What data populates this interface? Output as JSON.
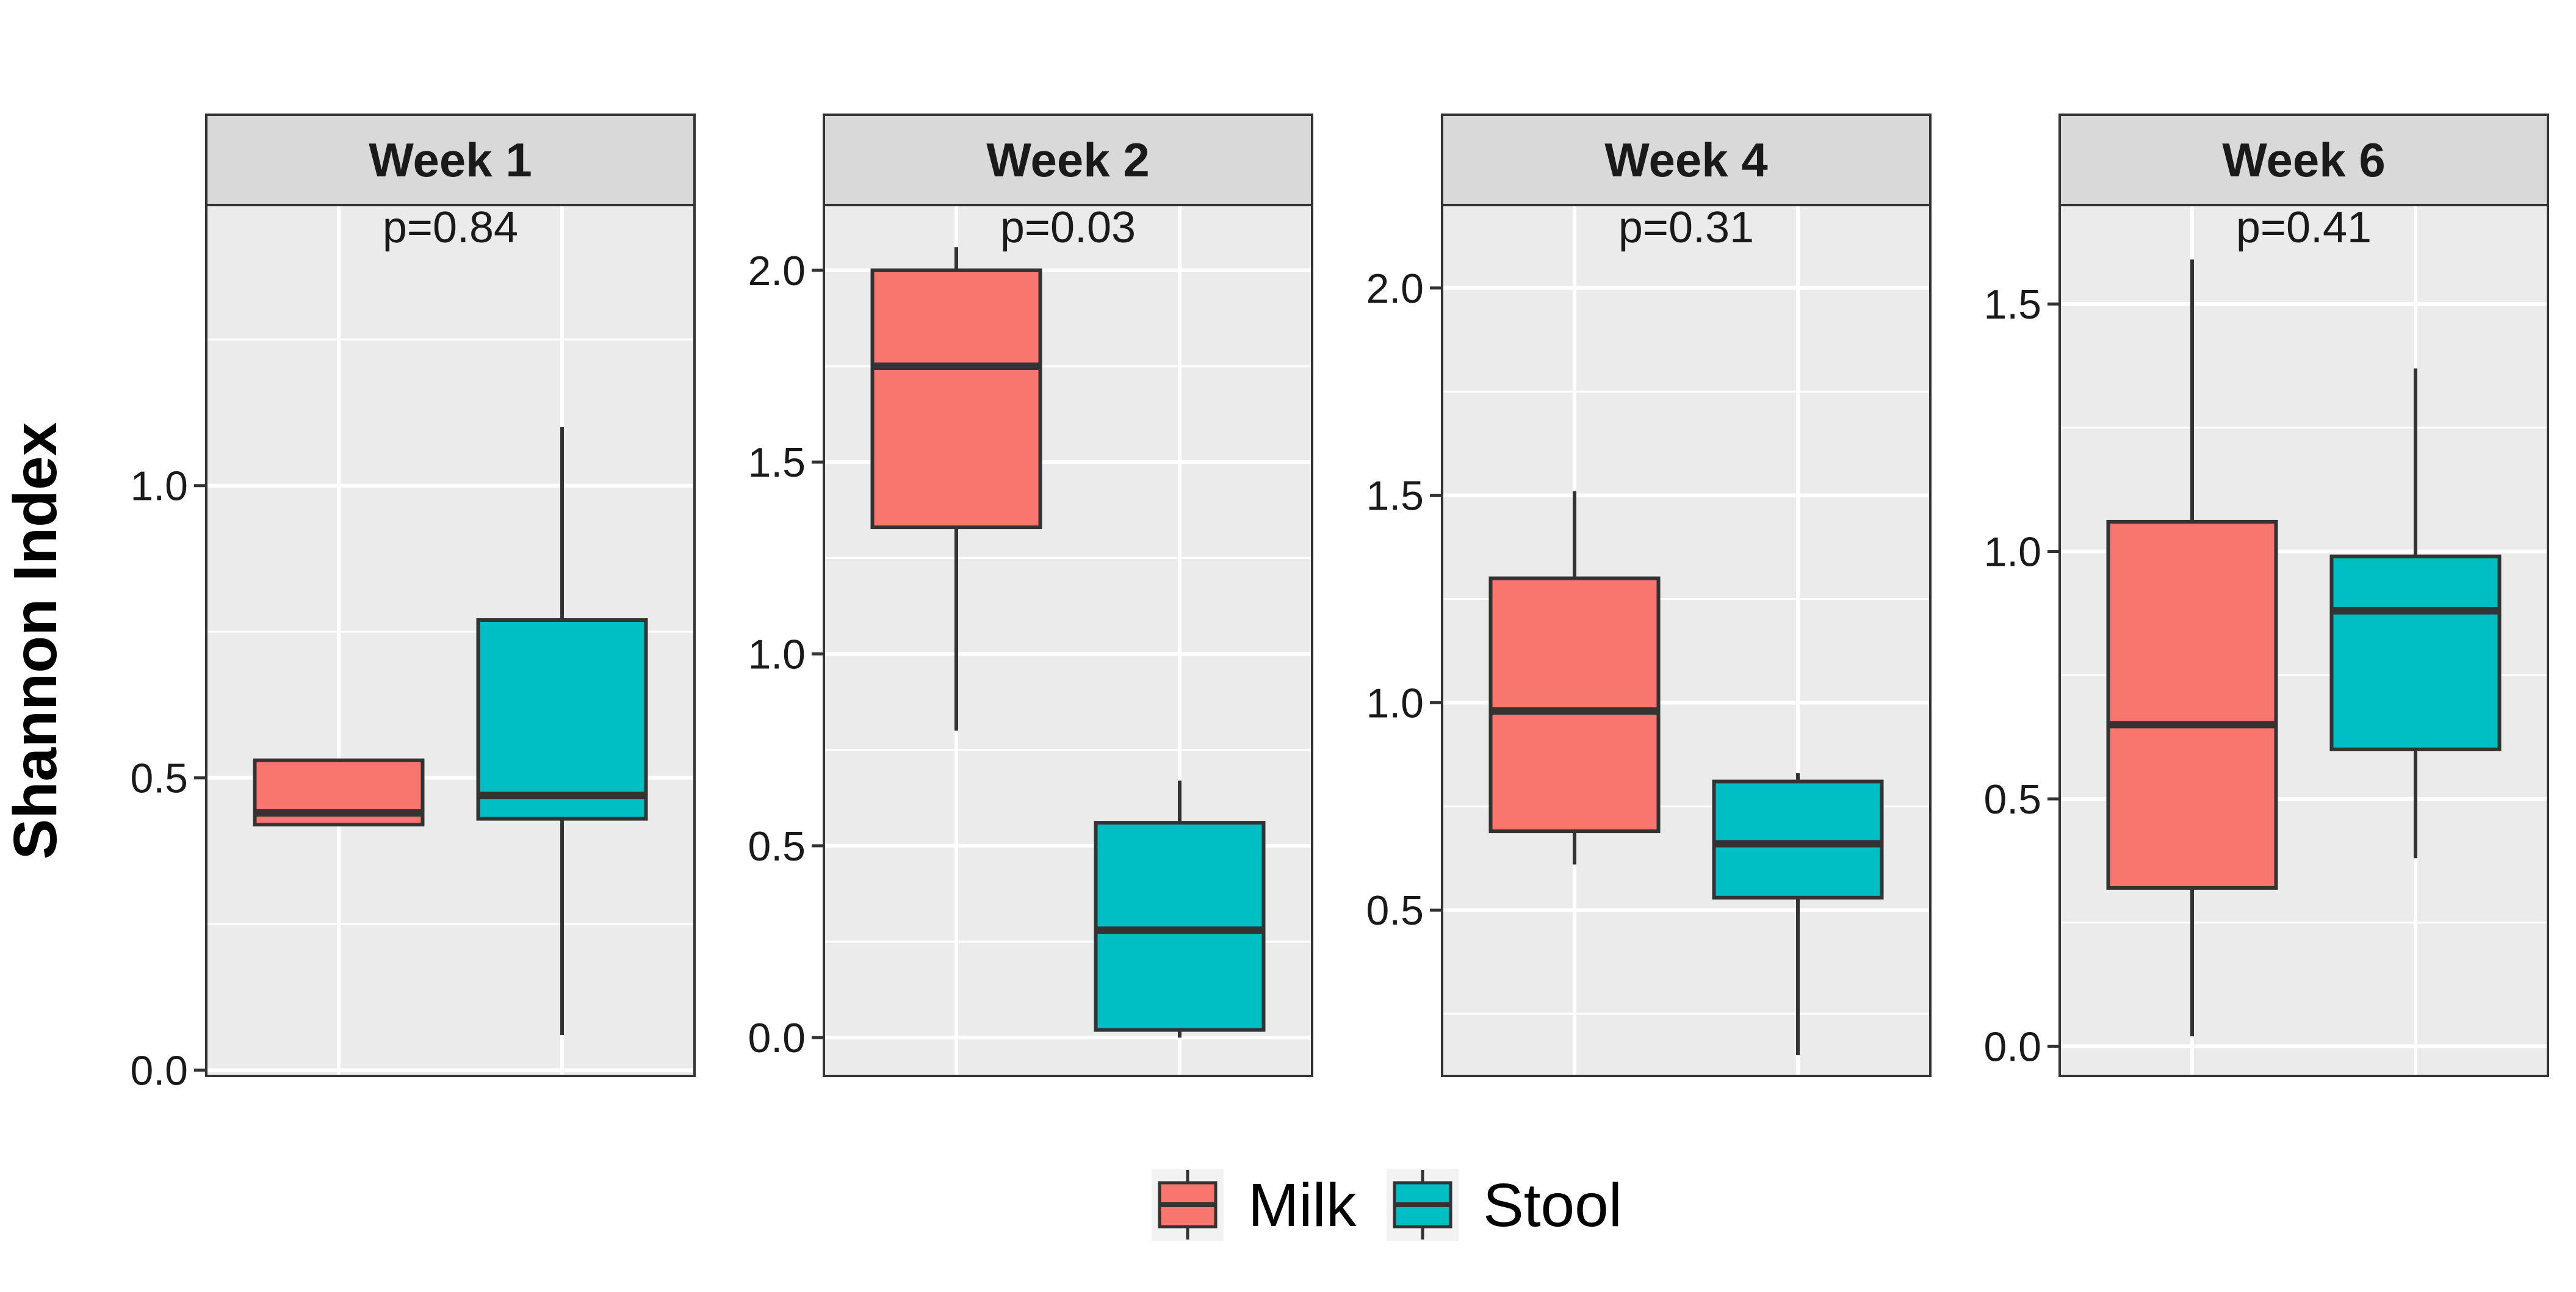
{
  "chart_data": {
    "type": "boxplot",
    "ylabel": "Shannon Index",
    "xlabel": "",
    "groups": [
      "Milk",
      "Stool"
    ],
    "colors": {
      "Milk": "#F8766D",
      "Stool": "#00BFC4"
    },
    "panel_background": "#EBEBEB",
    "grid": true,
    "legend_position": "bottom",
    "legend": [
      {
        "name": "Milk",
        "color": "#F8766D"
      },
      {
        "name": "Stool",
        "color": "#00BFC4"
      }
    ],
    "panels": [
      {
        "title": "Week 1",
        "pvalue": "p=0.84",
        "ylim": [
          -0.01,
          1.48
        ],
        "yticks": [
          0.0,
          0.5,
          1.0
        ],
        "ytick_labels": [
          "0.0",
          "0.5",
          "1.0"
        ],
        "boxes": [
          {
            "group": "Milk",
            "whisker_low": 0.42,
            "q1": 0.42,
            "median": 0.44,
            "q3": 0.53,
            "whisker_high": 0.53
          },
          {
            "group": "Stool",
            "whisker_low": 0.06,
            "q1": 0.43,
            "median": 0.47,
            "q3": 0.77,
            "whisker_high": 1.1
          }
        ]
      },
      {
        "title": "Week 2",
        "pvalue": "p=0.03",
        "ylim": [
          -0.1,
          2.17
        ],
        "yticks": [
          0.0,
          0.5,
          1.0,
          1.5,
          2.0
        ],
        "ytick_labels": [
          "0.0",
          "0.5",
          "1.0",
          "1.5",
          "2.0"
        ],
        "boxes": [
          {
            "group": "Milk",
            "whisker_low": 0.8,
            "q1": 1.33,
            "median": 1.75,
            "q3": 2.0,
            "whisker_high": 2.06
          },
          {
            "group": "Stool",
            "whisker_low": 0.0,
            "q1": 0.02,
            "median": 0.28,
            "q3": 0.56,
            "whisker_high": 0.67
          }
        ]
      },
      {
        "title": "Week 4",
        "pvalue": "p=0.31",
        "ylim": [
          0.1,
          2.2
        ],
        "yticks": [
          0.5,
          1.0,
          1.5,
          2.0
        ],
        "ytick_labels": [
          "0.5",
          "1.0",
          "1.5",
          "2.0"
        ],
        "boxes": [
          {
            "group": "Milk",
            "whisker_low": 0.61,
            "q1": 0.69,
            "median": 0.98,
            "q3": 1.3,
            "whisker_high": 1.51
          },
          {
            "group": "Stool",
            "whisker_low": 0.15,
            "q1": 0.53,
            "median": 0.66,
            "q3": 0.81,
            "whisker_high": 0.83
          }
        ]
      },
      {
        "title": "Week 6",
        "pvalue": "p=0.41",
        "ylim": [
          -0.06,
          1.7
        ],
        "yticks": [
          0.0,
          0.5,
          1.0,
          1.5
        ],
        "ytick_labels": [
          "0.0",
          "0.5",
          "1.0",
          "1.5"
        ],
        "boxes": [
          {
            "group": "Milk",
            "whisker_low": 0.02,
            "q1": 0.32,
            "median": 0.65,
            "q3": 1.06,
            "whisker_high": 1.59
          },
          {
            "group": "Stool",
            "whisker_low": 0.38,
            "q1": 0.6,
            "median": 0.88,
            "q3": 0.99,
            "whisker_high": 1.37
          }
        ]
      }
    ]
  }
}
